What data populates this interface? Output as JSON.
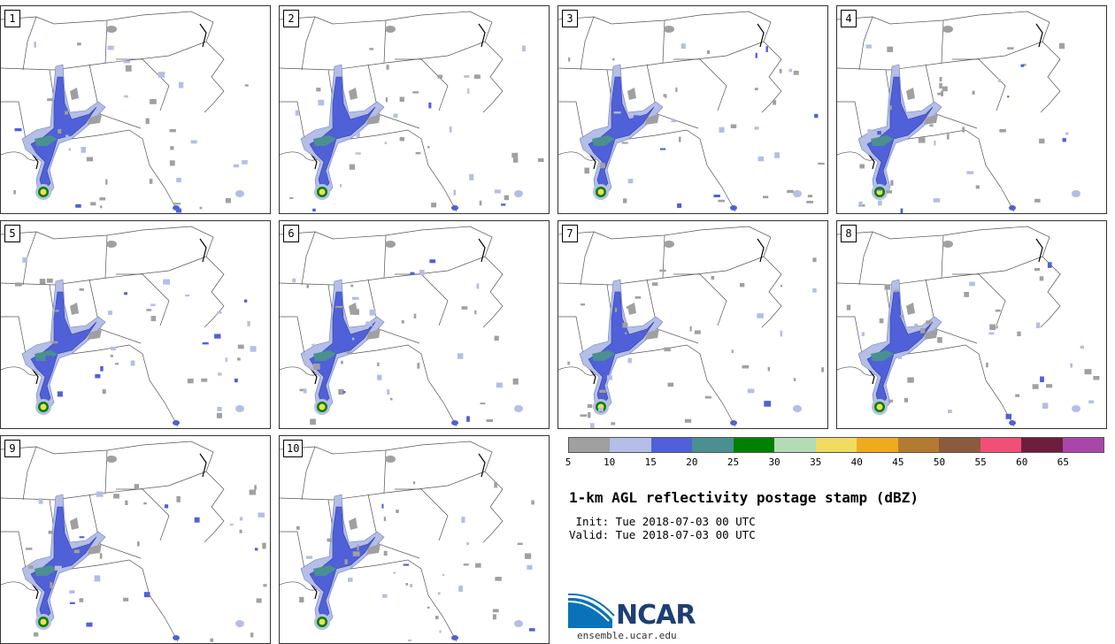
{
  "panels": [
    {
      "label": "1"
    },
    {
      "label": "2"
    },
    {
      "label": "3"
    },
    {
      "label": "4"
    },
    {
      "label": "5"
    },
    {
      "label": "6"
    },
    {
      "label": "7"
    },
    {
      "label": "8"
    },
    {
      "label": "9"
    },
    {
      "label": "10"
    }
  ],
  "colorbar": {
    "ticks": [
      "5",
      "10",
      "15",
      "20",
      "25",
      "30",
      "35",
      "40",
      "45",
      "50",
      "55",
      "60",
      "65"
    ],
    "colors": [
      "#a0a0a0",
      "#b4bee6",
      "#5060d8",
      "#4a9090",
      "#008000",
      "#b4dcb4",
      "#f0dc60",
      "#f0aa20",
      "#b47a30",
      "#8c5a3c",
      "#f05078",
      "#6e1e3c",
      "#aa46aa"
    ]
  },
  "title": "1-km AGL reflectivity postage stamp (dBZ)",
  "init_line": " Init: Tue 2018-07-03 00 UTC",
  "valid_line": "Valid: Tue 2018-07-03 00 UTC",
  "logo": {
    "text": "NCAR",
    "url": "ensemble.ucar.edu"
  }
}
